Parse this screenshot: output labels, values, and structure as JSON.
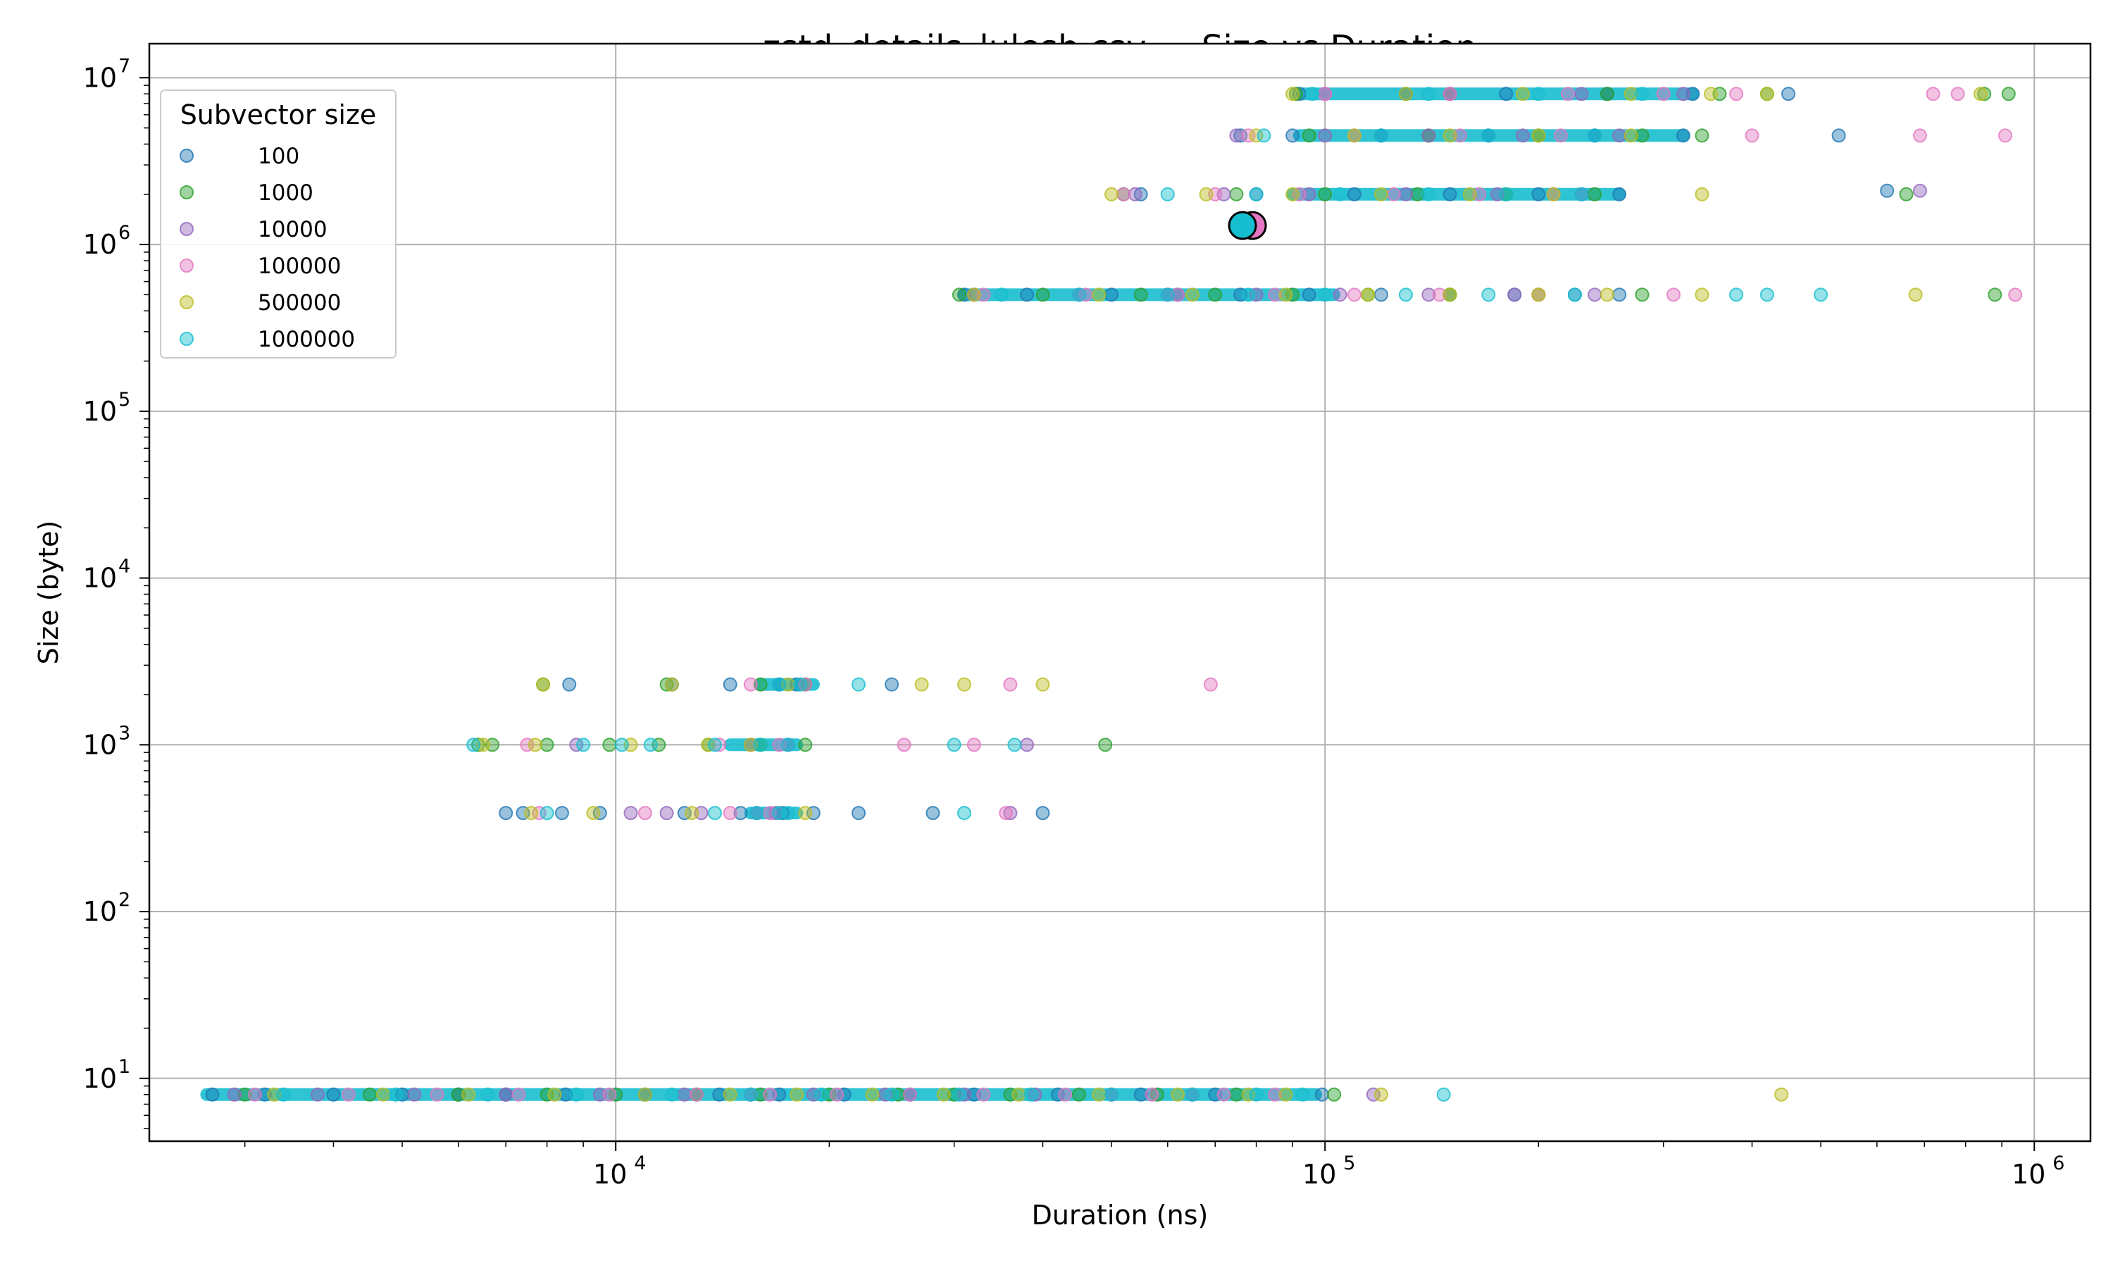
{
  "chart_data": {
    "type": "scatter",
    "title": "zstd_details_lulesh.csv — Size vs Duration",
    "xlabel": "Duration (ns)",
    "ylabel": "Size (byte)",
    "xscale": "log",
    "yscale": "log",
    "xlim": [
      2200,
      1200000
    ],
    "ylim": [
      4.2,
      16000000
    ],
    "x_ticks": [
      {
        "base": "10",
        "exp": "4",
        "value": 10000
      },
      {
        "base": "10",
        "exp": "5",
        "value": 100000
      },
      {
        "base": "10",
        "exp": "6",
        "value": 1000000
      }
    ],
    "y_ticks": [
      {
        "base": "10",
        "exp": "1",
        "value": 10
      },
      {
        "base": "10",
        "exp": "2",
        "value": 100
      },
      {
        "base": "10",
        "exp": "3",
        "value": 1000
      },
      {
        "base": "10",
        "exp": "4",
        "value": 10000
      },
      {
        "base": "10",
        "exp": "5",
        "value": 100000
      },
      {
        "base": "10",
        "exp": "6",
        "value": 1000000
      },
      {
        "base": "10",
        "exp": "7",
        "value": 10000000
      }
    ],
    "grid": true,
    "legend": {
      "title": "Subvector size",
      "placement": "top-left"
    },
    "series": [
      {
        "name": "100",
        "color": "#1f77b4",
        "x": [
          2700,
          3200,
          4000,
          5000,
          6000,
          7000,
          8500,
          11000,
          14000,
          17000,
          21000,
          26000,
          32000,
          42000,
          55000,
          70000,
          99000,
          7000,
          7400,
          8400,
          9500,
          12500,
          15000,
          17200,
          19000,
          22000,
          28000,
          40000,
          8600,
          12000,
          14500,
          17000,
          18000,
          24500,
          31000,
          38000,
          50000,
          62000,
          76000,
          95000,
          120000,
          150000,
          185000,
          225000,
          260000,
          55000,
          80000,
          110000,
          150000,
          200000,
          260000,
          620000,
          76000,
          90000,
          120000,
          170000,
          240000,
          320000,
          530000,
          92000,
          130000,
          180000,
          250000,
          330000,
          450000
        ],
        "y": [
          8,
          8,
          8,
          8,
          8,
          8,
          8,
          8,
          8,
          8,
          8,
          8,
          8,
          8,
          8,
          8,
          8,
          390,
          390,
          390,
          390,
          390,
          390,
          390,
          390,
          390,
          390,
          390,
          2300,
          2300,
          2300,
          2300,
          2300,
          2300,
          500000,
          500000,
          500000,
          500000,
          500000,
          500000,
          500000,
          500000,
          500000,
          500000,
          500000,
          2000000,
          2000000,
          2000000,
          2000000,
          2000000,
          2000000,
          2100000,
          4500000,
          4500000,
          4500000,
          4500000,
          4500000,
          4500000,
          4500000,
          8000000,
          8000000,
          8000000,
          8000000,
          8000000,
          8000000
        ]
      },
      {
        "name": "1000",
        "color": "#2ca02c",
        "x": [
          3000,
          4500,
          6000,
          8000,
          10000,
          13000,
          16000,
          20000,
          25000,
          30000,
          36000,
          45000,
          58000,
          75000,
          103000,
          6400,
          6700,
          8000,
          9800,
          11500,
          13500,
          16000,
          18500,
          49000,
          7900,
          11800,
          16000,
          18500,
          30500,
          40000,
          55000,
          70000,
          90000,
          115000,
          150000,
          200000,
          280000,
          880000,
          52000,
          75000,
          100000,
          135000,
          180000,
          240000,
          660000,
          95000,
          140000,
          200000,
          280000,
          340000,
          91000,
          150000,
          250000,
          360000,
          420000,
          920000,
          850000
        ],
        "y": [
          8,
          8,
          8,
          8,
          8,
          8,
          8,
          8,
          8,
          8,
          8,
          8,
          8,
          8,
          8,
          1000,
          1000,
          1000,
          1000,
          1000,
          1000,
          1000,
          1000,
          1000,
          2300,
          2300,
          2300,
          2300,
          500000,
          500000,
          500000,
          500000,
          500000,
          500000,
          500000,
          500000,
          500000,
          500000,
          2000000,
          2000000,
          2000000,
          2000000,
          2000000,
          2000000,
          2000000,
          4500000,
          4500000,
          4500000,
          4500000,
          4500000,
          8000000,
          8000000,
          8000000,
          8000000,
          8000000,
          8000000,
          8000000
        ]
      },
      {
        "name": "10000",
        "color": "#9467bd",
        "x": [
          2900,
          3800,
          5200,
          7000,
          9500,
          12500,
          15500,
          19000,
          24000,
          31000,
          39000,
          50000,
          65000,
          117000,
          10500,
          11800,
          13200,
          15800,
          16800,
          36000,
          8800,
          15500,
          17500,
          38000,
          32000,
          45000,
          60000,
          80000,
          105000,
          140000,
          185000,
          240000,
          54000,
          72000,
          95000,
          130000,
          175000,
          230000,
          690000,
          75000,
          100000,
          140000,
          190000,
          260000,
          100000,
          150000,
          230000,
          320000
        ],
        "y": [
          8,
          8,
          8,
          8,
          8,
          8,
          8,
          8,
          8,
          8,
          8,
          8,
          8,
          8,
          390,
          390,
          390,
          390,
          390,
          390,
          1000,
          1000,
          1000,
          1000,
          500000,
          500000,
          500000,
          500000,
          500000,
          500000,
          500000,
          500000,
          2000000,
          2000000,
          2000000,
          2000000,
          2000000,
          2000000,
          2100000,
          4500000,
          4500000,
          4500000,
          4500000,
          4500000,
          8000000,
          8000000,
          8000000,
          8000000
        ]
      },
      {
        "name": "100000",
        "color": "#e377c2",
        "x": [
          3100,
          4200,
          5600,
          7300,
          9800,
          13000,
          16500,
          20500,
          26000,
          33000,
          43000,
          57000,
          72000,
          85000,
          7800,
          11000,
          14500,
          16500,
          35500,
          7500,
          14000,
          17000,
          25500,
          32000,
          15500,
          18500,
          36000,
          69000,
          33000,
          46000,
          62000,
          85000,
          110000,
          145000,
          200000,
          310000,
          940000,
          52000,
          70000,
          92000,
          125000,
          165000,
          210000,
          78000,
          110000,
          155000,
          215000,
          400000,
          690000,
          910000,
          100000,
          150000,
          220000,
          300000,
          380000,
          720000,
          780000
        ],
        "y": [
          8,
          8,
          8,
          8,
          8,
          8,
          8,
          8,
          8,
          8,
          8,
          8,
          8,
          8,
          390,
          390,
          390,
          390,
          390,
          1000,
          1000,
          1000,
          1000,
          1000,
          2300,
          2300,
          2300,
          2300,
          500000,
          500000,
          500000,
          500000,
          500000,
          500000,
          500000,
          500000,
          500000,
          2000000,
          2000000,
          2000000,
          2000000,
          2000000,
          2000000,
          4500000,
          4500000,
          4500000,
          4500000,
          4500000,
          4500000,
          4500000,
          8000000,
          8000000,
          8000000,
          8000000,
          8000000,
          8000000,
          8000000
        ]
      },
      {
        "name": "500000",
        "color": "#bcbd22",
        "x": [
          3300,
          4700,
          6200,
          8200,
          11000,
          14500,
          18000,
          23000,
          29000,
          37000,
          48000,
          62000,
          78000,
          88000,
          120000,
          440000,
          7600,
          9300,
          12800,
          18500,
          6500,
          7700,
          10500,
          13500,
          15500,
          7900,
          12000,
          17500,
          27000,
          31000,
          40000,
          32000,
          48000,
          65000,
          88000,
          115000,
          150000,
          200000,
          250000,
          340000,
          680000,
          50000,
          68000,
          90000,
          120000,
          160000,
          210000,
          340000,
          80000,
          110000,
          150000,
          200000,
          270000,
          90000,
          130000,
          190000,
          270000,
          350000,
          420000,
          840000
        ],
        "y": [
          8,
          8,
          8,
          8,
          8,
          8,
          8,
          8,
          8,
          8,
          8,
          8,
          8,
          8,
          8,
          8,
          390,
          390,
          390,
          390,
          1000,
          1000,
          1000,
          1000,
          1000,
          2300,
          2300,
          2300,
          2300,
          2300,
          2300,
          500000,
          500000,
          500000,
          500000,
          500000,
          500000,
          500000,
          500000,
          500000,
          500000,
          2000000,
          2000000,
          2000000,
          2000000,
          2000000,
          2000000,
          2000000,
          4500000,
          4500000,
          4500000,
          4500000,
          4500000,
          8000000,
          8000000,
          8000000,
          8000000,
          8000000,
          8000000,
          8000000
        ]
      },
      {
        "name": "1000000",
        "color": "#17becf",
        "x": [
          3400,
          4900,
          6600,
          8800,
          12000,
          15500,
          19500,
          24500,
          30500,
          38500,
          50000,
          65000,
          80000,
          93000,
          147000,
          8000,
          13800,
          15800,
          17000,
          17500,
          31000,
          6300,
          9000,
          10200,
          11200,
          13800,
          16000,
          17500,
          30000,
          36500,
          17000,
          18200,
          22000,
          35000,
          45000,
          60000,
          78000,
          100000,
          130000,
          170000,
          225000,
          380000,
          420000,
          500000,
          60000,
          80000,
          105000,
          140000,
          180000,
          230000,
          82000,
          120000,
          170000,
          240000,
          96000,
          140000,
          200000,
          280000
        ],
        "y": [
          8,
          8,
          8,
          8,
          8,
          8,
          8,
          8,
          8,
          8,
          8,
          8,
          8,
          8,
          8,
          390,
          390,
          390,
          390,
          390,
          390,
          1000,
          1000,
          1000,
          1000,
          1000,
          1000,
          1000,
          1000,
          1000,
          2300,
          2300,
          2300,
          500000,
          500000,
          500000,
          500000,
          500000,
          500000,
          500000,
          500000,
          500000,
          500000,
          500000,
          2000000,
          2000000,
          2000000,
          2000000,
          2000000,
          2000000,
          4500000,
          4500000,
          4500000,
          4500000,
          8000000,
          8000000,
          8000000,
          8000000
        ]
      }
    ],
    "bands": [
      {
        "series": "1000000",
        "x_range": [
          2650,
          97000
        ],
        "y": 8
      },
      {
        "series": "1000000",
        "x_range": [
          31000,
          103000
        ],
        "y": 500000
      },
      {
        "series": "1000000",
        "x_range": [
          90000,
          260000
        ],
        "y": 2000000
      },
      {
        "series": "1000000",
        "x_range": [
          92000,
          320000
        ],
        "y": 4500000
      },
      {
        "series": "1000000",
        "x_range": [
          93000,
          330000
        ],
        "y": 8000000
      },
      {
        "series": "1000000",
        "x_range": [
          14500,
          18000
        ],
        "y": 1000
      },
      {
        "series": "1000000",
        "x_range": [
          15500,
          18000
        ],
        "y": 390
      },
      {
        "series": "1000000",
        "x_range": [
          16000,
          19000
        ],
        "y": 2300
      }
    ],
    "highlights": [
      {
        "series": "100000",
        "x": 79000,
        "y": 1300000
      },
      {
        "series": "1000000",
        "x": 76500,
        "y": 1300000
      }
    ]
  }
}
